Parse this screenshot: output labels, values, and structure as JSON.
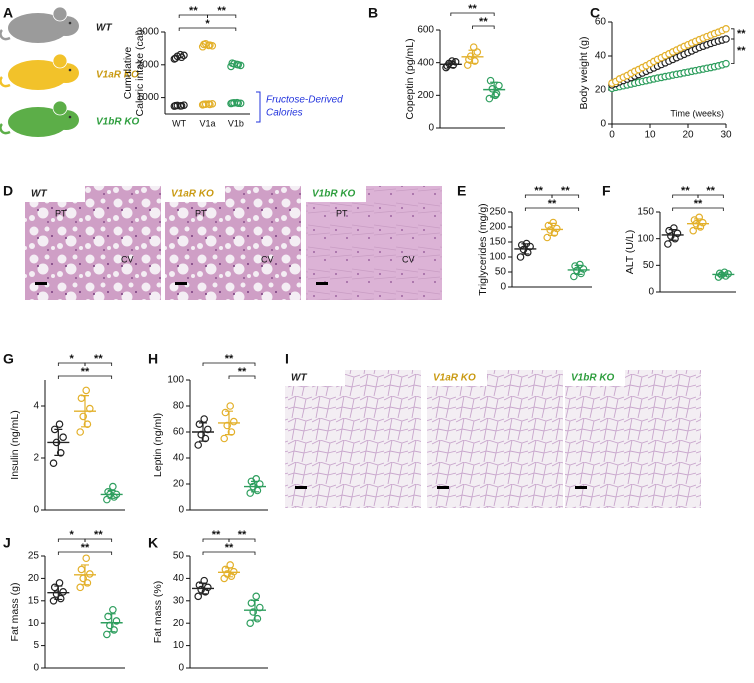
{
  "mice": [
    {
      "label": "WT",
      "color": "#222222",
      "body_color": "#9b9b9b"
    },
    {
      "label": "V1aR KO",
      "color": "#c99a12",
      "body_color": "#f2c22a"
    },
    {
      "label": "V1bR KO",
      "color": "#2e9e3e",
      "body_color": "#5cae48"
    }
  ],
  "histology": [
    {
      "panel": "D",
      "images": [
        {
          "label": "WT",
          "color": "#222222",
          "marks": [
            "PT",
            "CV"
          ]
        },
        {
          "label": "V1aR KO",
          "color": "#c99a12",
          "marks": [
            "PT",
            "CV"
          ]
        },
        {
          "label": "V1bR KO",
          "color": "#2e9e3e",
          "marks": [
            "PT",
            "CV"
          ]
        }
      ]
    },
    {
      "panel": "I",
      "images": [
        {
          "label": "WT",
          "color": "#222222"
        },
        {
          "label": "V1aR KO",
          "color": "#c99a12"
        },
        {
          "label": "V1bR KO",
          "color": "#2e9e3e"
        }
      ]
    }
  ],
  "chart_data": [
    {
      "type": "dotplot",
      "panel": "A",
      "ylabel": [
        "Cumulative",
        "Caloric intake (cal)"
      ],
      "categories": [
        "WT",
        "V1a",
        "V1b"
      ],
      "ylim": [
        500,
        3000
      ],
      "yticks": [
        1000,
        2000,
        3000
      ],
      "groups": [
        {
          "color": "#222222",
          "values": [
            2180,
            2230,
            2260,
            2290,
            2200,
            2310
          ],
          "fructose": [
            740,
            750,
            760,
            770,
            755,
            745
          ]
        },
        {
          "color": "#e3b02a",
          "values": [
            2550,
            2600,
            2640,
            2580,
            2620,
            2590
          ],
          "fructose": [
            780,
            790,
            800,
            810,
            795,
            805
          ]
        },
        {
          "color": "#2e9e5e",
          "values": [
            1950,
            2000,
            2030,
            1980,
            2050,
            2010
          ],
          "fructose": [
            820,
            830,
            840,
            825,
            835,
            845
          ]
        }
      ],
      "annotation": [
        "Fructose-Derived",
        "Calories"
      ],
      "annotation_color": "#2233dd",
      "comparisons": [
        {
          "pair": [
            0,
            1
          ],
          "label": "**"
        },
        {
          "pair": [
            1,
            2
          ],
          "label": "**"
        },
        {
          "pair": [
            0,
            2
          ],
          "label": "*"
        }
      ]
    },
    {
      "type": "dotplot",
      "panel": "B",
      "ylabel": "Copeptin (pg/mL)",
      "ylim": [
        0,
        600
      ],
      "yticks": [
        0,
        200,
        400,
        600
      ],
      "groups": [
        {
          "color": "#222222",
          "values": [
            370,
            385,
            395,
            405,
            380,
            410
          ],
          "mean": 390,
          "sd": 20
        },
        {
          "color": "#e3b02a",
          "values": [
            385,
            410,
            440,
            465,
            420,
            495
          ],
          "mean": 436,
          "sd": 40
        },
        {
          "color": "#2e9e5e",
          "values": [
            180,
            210,
            240,
            260,
            290,
            200
          ],
          "mean": 235,
          "sd": 45
        }
      ],
      "comparisons": [
        {
          "pair": [
            0,
            2
          ],
          "label": "**"
        },
        {
          "pair": [
            1,
            2
          ],
          "label": "**"
        }
      ]
    },
    {
      "type": "scatter",
      "panel": "C",
      "ylabel": "Body weight (g)",
      "xlabel": "Time (weeks)",
      "xlim": [
        0,
        30
      ],
      "xticks": [
        0,
        10,
        20,
        30
      ],
      "ylim": [
        0,
        60
      ],
      "yticks": [
        0,
        20,
        40,
        60
      ],
      "x": [
        0,
        1,
        2,
        3,
        4,
        5,
        6,
        7,
        8,
        9,
        10,
        11,
        12,
        13,
        14,
        15,
        16,
        17,
        18,
        19,
        20,
        21,
        22,
        23,
        24,
        25,
        26,
        27,
        28,
        29,
        30
      ],
      "series": [
        {
          "color": "#e3b02a",
          "values": [
            24,
            25,
            26.5,
            27.5,
            28.5,
            29.8,
            31,
            32,
            33.2,
            34.3,
            35.5,
            36.8,
            38,
            39,
            40.2,
            41.3,
            42.4,
            43.5,
            44.6,
            45.6,
            46.6,
            47.6,
            48.6,
            49.6,
            50.5,
            51.4,
            52.3,
            53.2,
            54,
            55,
            56
          ]
        },
        {
          "color": "#222222",
          "values": [
            23,
            23.8,
            24.8,
            25.6,
            26.4,
            27.3,
            28.2,
            29.1,
            30,
            31,
            32,
            33,
            34,
            35,
            36,
            37,
            38,
            39,
            40,
            41,
            42,
            43,
            44,
            45,
            45.8,
            46.6,
            47.4,
            48.1,
            48.8,
            49.4,
            50
          ]
        },
        {
          "color": "#2e9e5e",
          "values": [
            21,
            21.6,
            22,
            22.5,
            23,
            23.5,
            24,
            24.5,
            25,
            25.5,
            26,
            26.5,
            27,
            27.4,
            27.9,
            28.3,
            28.8,
            29.2,
            29.6,
            30.1,
            30.5,
            31,
            31.4,
            31.9,
            32.3,
            32.8,
            33.2,
            33.7,
            34.2,
            34.8,
            35.5
          ]
        }
      ],
      "comparisons": [
        {
          "series": [
            0,
            1
          ],
          "label": "**"
        },
        {
          "series": [
            1,
            2
          ],
          "label": "**"
        }
      ]
    },
    {
      "type": "dotplot",
      "panel": "E",
      "ylabel": "Triglycerides (mg/g)",
      "ylim": [
        0,
        250
      ],
      "yticks": [
        0,
        50,
        100,
        150,
        200,
        250
      ],
      "groups": [
        {
          "color": "#222222",
          "values": [
            100,
            115,
            125,
            135,
            140,
            145
          ],
          "mean": 127,
          "sd": 17
        },
        {
          "color": "#e3b02a",
          "values": [
            165,
            180,
            190,
            195,
            205,
            215
          ],
          "mean": 192,
          "sd": 20
        },
        {
          "color": "#2e9e5e",
          "values": [
            35,
            45,
            55,
            60,
            70,
            75
          ],
          "mean": 57,
          "sd": 15
        }
      ],
      "comparisons": [
        {
          "pair": [
            0,
            1
          ],
          "label": "**"
        },
        {
          "pair": [
            1,
            2
          ],
          "label": "**"
        },
        {
          "pair": [
            0,
            2
          ],
          "label": "**"
        }
      ]
    },
    {
      "type": "dotplot",
      "panel": "F",
      "ylabel": "ALT (U/L)",
      "ylim": [
        0,
        150
      ],
      "yticks": [
        0,
        50,
        100,
        150
      ],
      "groups": [
        {
          "color": "#222222",
          "values": [
            90,
            100,
            105,
            110,
            115,
            120
          ],
          "mean": 107,
          "sd": 10
        },
        {
          "color": "#e3b02a",
          "values": [
            115,
            122,
            128,
            130,
            135,
            140
          ],
          "mean": 128,
          "sd": 9
        },
        {
          "color": "#2e9e5e",
          "values": [
            28,
            30,
            32,
            34,
            35,
            37
          ],
          "mean": 33,
          "sd": 3
        }
      ],
      "comparisons": [
        {
          "pair": [
            0,
            1
          ],
          "label": "**"
        },
        {
          "pair": [
            1,
            2
          ],
          "label": "**"
        },
        {
          "pair": [
            0,
            2
          ],
          "label": "**"
        }
      ]
    },
    {
      "type": "dotplot",
      "panel": "G",
      "ylabel": "Insulin (ng/mL)",
      "ylim": [
        0,
        5
      ],
      "yticks": [
        0,
        2,
        4
      ],
      "groups": [
        {
          "color": "#222222",
          "values": [
            1.8,
            2.2,
            2.6,
            2.8,
            3.1,
            3.3
          ],
          "mean": 2.6,
          "sd": 0.5
        },
        {
          "color": "#e3b02a",
          "values": [
            3.0,
            3.3,
            3.6,
            3.9,
            4.3,
            4.6
          ],
          "mean": 3.8,
          "sd": 0.6
        },
        {
          "color": "#2e9e5e",
          "values": [
            0.4,
            0.5,
            0.6,
            0.6,
            0.7,
            0.9
          ],
          "mean": 0.6,
          "sd": 0.15
        }
      ],
      "comparisons": [
        {
          "pair": [
            0,
            1
          ],
          "label": "*"
        },
        {
          "pair": [
            1,
            2
          ],
          "label": "**"
        },
        {
          "pair": [
            0,
            2
          ],
          "label": "**"
        }
      ]
    },
    {
      "type": "dotplot",
      "panel": "H",
      "ylabel": "Leptin (ng/ml)",
      "ylim": [
        0,
        100
      ],
      "yticks": [
        0,
        20,
        40,
        60,
        80,
        100
      ],
      "groups": [
        {
          "color": "#222222",
          "values": [
            50,
            55,
            58,
            62,
            66,
            70
          ],
          "mean": 60,
          "sd": 7
        },
        {
          "color": "#e3b02a",
          "values": [
            55,
            60,
            65,
            68,
            75,
            80
          ],
          "mean": 67,
          "sd": 9
        },
        {
          "color": "#2e9e5e",
          "values": [
            13,
            15,
            18,
            20,
            22,
            24
          ],
          "mean": 18,
          "sd": 4
        }
      ],
      "comparisons": [
        {
          "pair": [
            0,
            2
          ],
          "label": "**"
        },
        {
          "pair": [
            1,
            2
          ],
          "label": "**"
        }
      ]
    },
    {
      "type": "dotplot",
      "panel": "J",
      "ylabel": "Fat mass (g)",
      "ylim": [
        0,
        25
      ],
      "yticks": [
        0,
        5,
        10,
        15,
        20,
        25
      ],
      "groups": [
        {
          "color": "#222222",
          "values": [
            15,
            15.5,
            16.5,
            17,
            18,
            19
          ],
          "mean": 16.8,
          "sd": 1.5
        },
        {
          "color": "#e3b02a",
          "values": [
            18,
            19,
            20,
            21,
            22,
            24.5
          ],
          "mean": 20.8,
          "sd": 2.2
        },
        {
          "color": "#2e9e5e",
          "values": [
            7.5,
            8.5,
            9.5,
            10.5,
            11.5,
            13
          ],
          "mean": 10.1,
          "sd": 2
        }
      ],
      "comparisons": [
        {
          "pair": [
            0,
            1
          ],
          "label": "*"
        },
        {
          "pair": [
            1,
            2
          ],
          "label": "**"
        },
        {
          "pair": [
            0,
            2
          ],
          "label": "**"
        }
      ]
    },
    {
      "type": "dotplot",
      "panel": "K",
      "ylabel": "Fat mass (%)",
      "ylim": [
        0,
        50
      ],
      "yticks": [
        0,
        10,
        20,
        30,
        40,
        50
      ],
      "groups": [
        {
          "color": "#222222",
          "values": [
            32,
            34,
            35,
            36,
            37,
            39
          ],
          "mean": 35.5,
          "sd": 2.4
        },
        {
          "color": "#e3b02a",
          "values": [
            40,
            41,
            42,
            43,
            44,
            46
          ],
          "mean": 42.7,
          "sd": 2
        },
        {
          "color": "#2e9e5e",
          "values": [
            20,
            22,
            25,
            27,
            29,
            32
          ],
          "mean": 25.8,
          "sd": 4.4
        }
      ],
      "comparisons": [
        {
          "pair": [
            0,
            1
          ],
          "label": "**"
        },
        {
          "pair": [
            1,
            2
          ],
          "label": "**"
        },
        {
          "pair": [
            0,
            2
          ],
          "label": "**"
        }
      ]
    }
  ]
}
